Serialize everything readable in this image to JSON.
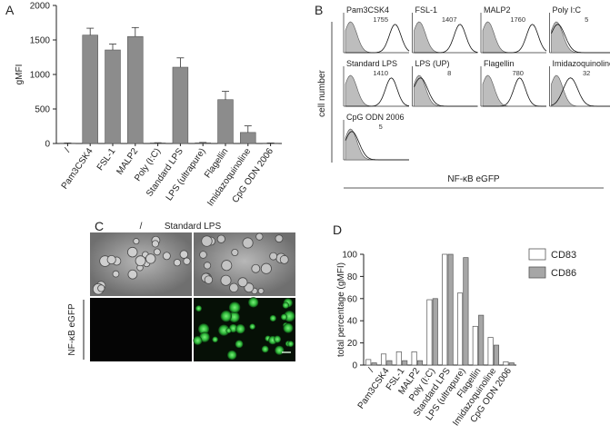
{
  "panels": {
    "a": "A",
    "b": "B",
    "c": "C",
    "d": "D"
  },
  "chart_data": [
    {
      "type": "bar",
      "panel": "A",
      "categories": [
        "/",
        "Pam3CSK4",
        "FSL-1",
        "MALP2",
        "Poly (I:C)",
        "Standard LPS",
        "LPS (ultrapure)",
        "Flagellin",
        "Imidazoquinoline",
        "CpG ODN 2006"
      ],
      "values": [
        5,
        1570,
        1355,
        1550,
        8,
        1105,
        10,
        635,
        160,
        5
      ],
      "errors": [
        2,
        100,
        85,
        130,
        3,
        135,
        5,
        120,
        95,
        3
      ],
      "ylabel": "gMFI",
      "xlabel": "",
      "ylim": [
        0,
        2000
      ],
      "yticks": [
        0,
        500,
        1000,
        1500,
        2000
      ],
      "grid": false,
      "bar_color": "#8c8c8c"
    },
    {
      "type": "histogram-grid",
      "panel": "B",
      "xlabel": "NF-κB eGFP",
      "ylabel": "cell number",
      "cells": [
        {
          "label": "Pam3CSK4",
          "value": "1755",
          "shift": 0.78
        },
        {
          "label": "FSL-1",
          "value": "1407",
          "shift": 0.72
        },
        {
          "label": "MALP2",
          "value": "1760",
          "shift": 0.78
        },
        {
          "label": "Poly I:C",
          "value": "5",
          "shift": 0.1
        },
        {
          "label": "Standard LPS",
          "value": "1410",
          "shift": 0.72
        },
        {
          "label": "LPS (UP)",
          "value": "8",
          "shift": 0.1
        },
        {
          "label": "Flagellin",
          "value": "780",
          "shift": 0.58
        },
        {
          "label": "Imidazoquinoline",
          "value": "32",
          "shift": 0.3
        },
        {
          "label": "CpG ODN 2006",
          "value": "5",
          "shift": 0.1
        }
      ]
    },
    {
      "type": "bar",
      "panel": "D",
      "categories": [
        "/",
        "Pam3CSK4",
        "FSL-1",
        "MALP2",
        "Poly (I:C)",
        "Standard LPS",
        "LPS (ultrapure)",
        "Flagellin",
        "Imidazoquinoline",
        "CpG ODN 2006"
      ],
      "series": [
        {
          "name": "CD83",
          "values": [
            5,
            10,
            12,
            12,
            59,
            100,
            65,
            35,
            25,
            3
          ],
          "color": "#ffffff"
        },
        {
          "name": "CD86",
          "values": [
            2,
            4,
            4,
            4,
            60,
            100,
            97,
            45,
            18,
            2
          ],
          "color": "#a6a6a6"
        }
      ],
      "ylabel": "total percentage (gMFI)",
      "xlabel": "",
      "ylim": [
        0,
        100
      ],
      "yticks": [
        0,
        20,
        40,
        60,
        80,
        100
      ],
      "legend": "top-right",
      "grid": false
    }
  ],
  "microscopy": {
    "col1": "/",
    "col2": "Standard LPS",
    "row2": "NF-κB eGFP"
  }
}
